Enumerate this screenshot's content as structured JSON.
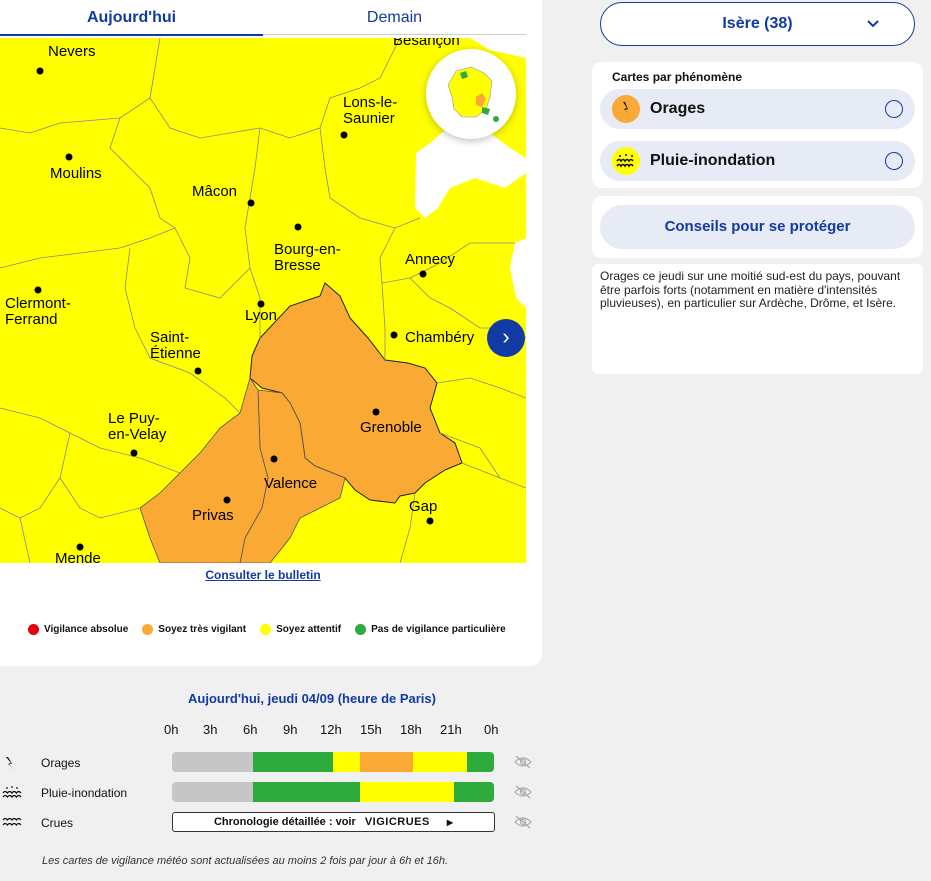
{
  "tabs": {
    "today": "Aujourd'hui",
    "tomorrow": "Demain"
  },
  "map": {
    "cities": [
      {
        "name": "Nevers",
        "lines": [
          "Nevers"
        ]
      },
      {
        "name": "Besançon",
        "lines": [
          "Besançon"
        ]
      },
      {
        "name": "Lons-le-Saunier",
        "lines": [
          "Lons-le-",
          "Saunier"
        ]
      },
      {
        "name": "Moulins",
        "lines": [
          "Moulins"
        ]
      },
      {
        "name": "Mâcon",
        "lines": [
          "Mâcon"
        ]
      },
      {
        "name": "Bourg-en-Bresse",
        "lines": [
          "Bourg-en-",
          "Bresse"
        ]
      },
      {
        "name": "Annecy",
        "lines": [
          "Annecy"
        ]
      },
      {
        "name": "Clermont-Ferrand",
        "lines": [
          "Clermont-",
          "Ferrand"
        ]
      },
      {
        "name": "Lyon",
        "lines": [
          "Lyon"
        ]
      },
      {
        "name": "Chambéry",
        "lines": [
          "Chambéry"
        ]
      },
      {
        "name": "Saint-Étienne",
        "lines": [
          "Saint-",
          "Étienne"
        ]
      },
      {
        "name": "Grenoble",
        "lines": [
          "Grenoble"
        ]
      },
      {
        "name": "Le Puy-en-Velay",
        "lines": [
          "Le Puy-",
          "en-Velay"
        ]
      },
      {
        "name": "Valence",
        "lines": [
          "Valence"
        ]
      },
      {
        "name": "Privas",
        "lines": [
          "Privas"
        ]
      },
      {
        "name": "Gap",
        "lines": [
          "Gap"
        ]
      },
      {
        "name": "Mende",
        "lines": [
          "Mende"
        ]
      }
    ],
    "colors": {
      "yellow": "#ffff00",
      "orange": "#f9a934",
      "white": "#ffffff"
    }
  },
  "bulletin_link": "Consulter le bulletin",
  "legend": [
    {
      "label": "Vigilance absolue",
      "color": "#e3000f"
    },
    {
      "label": "Soyez très vigilant",
      "color": "#f9a934"
    },
    {
      "label": "Soyez attentif",
      "color": "#ffff00"
    },
    {
      "label": "Pas de vigilance particulière",
      "color": "#2eab3c"
    }
  ],
  "department": {
    "label": "Isère (38)"
  },
  "phenomena": {
    "title": "Cartes par phénomène",
    "items": [
      {
        "label": "Orages",
        "icon": "thunderstorm-icon",
        "color": "#f9a934"
      },
      {
        "label": "Pluie-inondation",
        "icon": "rain-flood-icon",
        "color": "#ffff00"
      }
    ]
  },
  "advice_button": "Conseils pour se protéger",
  "description": "Orages ce jeudi sur une moitié sud-est du pays, pouvant être parfois forts (notamment en matière d'intensités pluvieuses), en particulier sur Ardèche, Drôme, et Isère.",
  "timeline": {
    "title": "Aujourd'hui, jeudi 04/09 (heure de Paris)",
    "hours": [
      "0h",
      "3h",
      "6h",
      "9h",
      "12h",
      "15h",
      "18h",
      "21h",
      "0h"
    ],
    "rows": [
      {
        "label": "Orages",
        "icon": "thunderstorm-icon",
        "segments": [
          {
            "from": 0,
            "to": 6,
            "color": "#c6c6c6"
          },
          {
            "from": 6,
            "to": 12,
            "color": "#2eab3c"
          },
          {
            "from": 12,
            "to": 14,
            "color": "#ffff00"
          },
          {
            "from": 14,
            "to": 18,
            "color": "#f9a934"
          },
          {
            "from": 18,
            "to": 22,
            "color": "#ffff00"
          },
          {
            "from": 22,
            "to": 24,
            "color": "#2eab3c"
          }
        ]
      },
      {
        "label": "Pluie-inondation",
        "icon": "rain-flood-icon",
        "segments": [
          {
            "from": 0,
            "to": 6,
            "color": "#c6c6c6"
          },
          {
            "from": 6,
            "to": 14,
            "color": "#2eab3c"
          },
          {
            "from": 14,
            "to": 21,
            "color": "#ffff00"
          },
          {
            "from": 21,
            "to": 24,
            "color": "#2eab3c"
          }
        ]
      }
    ],
    "crues": {
      "label": "Crues",
      "link_text": "Chronologie détaillée : voir",
      "brand": "VIGICRUES"
    }
  },
  "footnote": "Les cartes de vigilance météo sont actualisées au moins 2 fois par jour à 6h et 16h."
}
